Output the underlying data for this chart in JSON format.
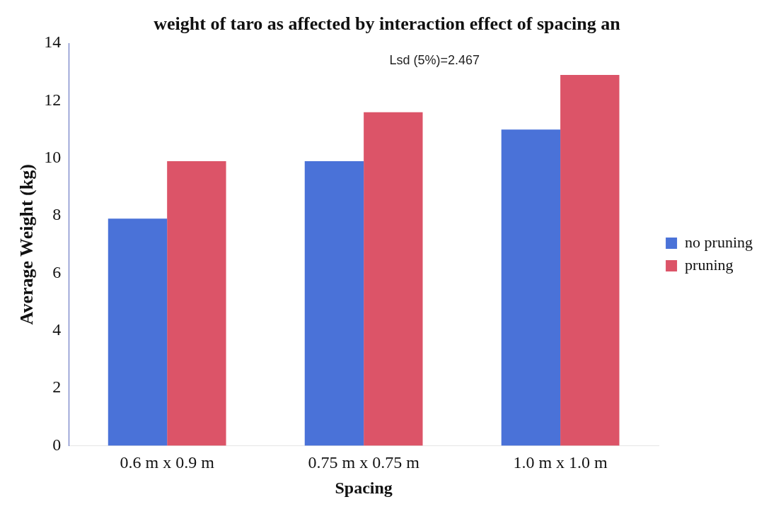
{
  "chart_data": {
    "type": "bar",
    "title": "weight of taro as affected by interaction effect of spacing an",
    "xlabel": "Spacing",
    "ylabel": "Average Weight (kg)",
    "annotations": [
      "Lsd (5%)=2.467"
    ],
    "categories": [
      "0.6 m x 0.9 m",
      "0.75 m x 0.75 m",
      "1.0 m x 1.0 m"
    ],
    "series": [
      {
        "name": "no pruning",
        "color": "#4a72d8",
        "values": [
          7.9,
          9.9,
          11
        ]
      },
      {
        "name": "pruning",
        "color": "#dc5468",
        "values": [
          9.9,
          11.6,
          12.9
        ]
      }
    ],
    "ylim": [
      0,
      14
    ],
    "yticks": [
      0,
      2,
      4,
      6,
      8,
      10,
      12,
      14
    ],
    "grid": false,
    "legend": "right"
  }
}
